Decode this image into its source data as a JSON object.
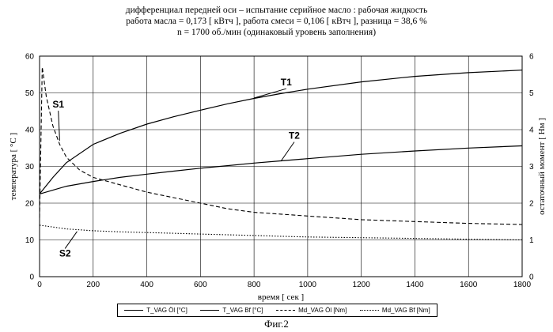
{
  "header": {
    "line1": "дифференциал передней оси – испытание серийное масло : рабочая жидкость",
    "line2": "работа масла = 0,173 [ кВтч ],  работа смеси = 0,106 [ кВтч ], разница = 38,6 %",
    "line3": "n = 1700 об./мин (одинаковый уровень заполнения)"
  },
  "figure_caption": "Фиг.2",
  "legend": [
    {
      "label": "T_VAG Öl [°C]",
      "style": "solid"
    },
    {
      "label": "T_VAG Bf [°C]",
      "style": "solid"
    },
    {
      "label": "Md_VAG Öl [Nm]",
      "style": "dashed"
    },
    {
      "label": "Md_VAG Bf [Nm]",
      "style": "dotted"
    }
  ],
  "chart_data": {
    "type": "line",
    "xlabel": "время [ сек ]",
    "ylabel_left": "температура [ °C ]",
    "ylabel_right": "остаточный момент [ Нм ]",
    "xlim": [
      0,
      1800
    ],
    "ylim_left": [
      0,
      60
    ],
    "ylim_right": [
      0,
      6
    ],
    "x_ticks": [
      0,
      200,
      400,
      600,
      800,
      1000,
      1200,
      1400,
      1600,
      1800
    ],
    "y_ticks_left": [
      0,
      10,
      20,
      30,
      40,
      50,
      60
    ],
    "y_ticks_right": [
      0,
      1,
      2,
      3,
      4,
      5,
      6
    ],
    "grid": true,
    "series": [
      {
        "name": "T_VAG Öl [°C]",
        "axis": "left",
        "style": "solid",
        "x": [
          0,
          50,
          100,
          200,
          300,
          400,
          500,
          600,
          700,
          800,
          900,
          1000,
          1200,
          1400,
          1600,
          1800
        ],
        "y": [
          22.5,
          27,
          31,
          36,
          39,
          41.5,
          43.5,
          45.3,
          47,
          48.5,
          49.8,
          51,
          53,
          54.5,
          55.5,
          56.2
        ]
      },
      {
        "name": "T_VAG Bf [°C]",
        "axis": "left",
        "style": "solid",
        "x": [
          0,
          100,
          200,
          300,
          400,
          500,
          600,
          700,
          800,
          900,
          1000,
          1200,
          1400,
          1600,
          1800
        ],
        "y": [
          22.5,
          24.6,
          25.9,
          27,
          27.9,
          28.7,
          29.5,
          30.2,
          30.9,
          31.5,
          32.1,
          33.3,
          34.2,
          35,
          35.6
        ]
      },
      {
        "name": "Md_VAG Öl [Nm]",
        "axis": "right",
        "style": "dashed",
        "x": [
          0,
          10,
          25,
          50,
          75,
          100,
          150,
          200,
          300,
          400,
          500,
          600,
          700,
          800,
          900,
          1000,
          1200,
          1400,
          1600,
          1800
        ],
        "y": [
          1.6,
          5.7,
          4.9,
          4.1,
          3.6,
          3.25,
          2.9,
          2.7,
          2.5,
          2.3,
          2.15,
          2.0,
          1.85,
          1.75,
          1.7,
          1.65,
          1.55,
          1.5,
          1.45,
          1.42
        ]
      },
      {
        "name": "Md_VAG Bf [Nm]",
        "axis": "right",
        "style": "dotted",
        "x": [
          0,
          50,
          100,
          200,
          300,
          400,
          500,
          600,
          700,
          800,
          900,
          1000,
          1200,
          1400,
          1600,
          1800
        ],
        "y": [
          1.4,
          1.35,
          1.3,
          1.25,
          1.22,
          1.2,
          1.18,
          1.16,
          1.14,
          1.12,
          1.1,
          1.08,
          1.06,
          1.04,
          1.02,
          1.0
        ]
      }
    ],
    "annotations": [
      {
        "text": "T1",
        "x": 920,
        "y": 52,
        "target_x": 800,
        "target_y": 48.6
      },
      {
        "text": "T2",
        "x": 950,
        "y": 37.5,
        "target_x": 900,
        "target_y": 31.4
      },
      {
        "text": "S1",
        "x": 70,
        "y": 46,
        "target_x": 75,
        "target_y": 37
      },
      {
        "text": "S2",
        "x": 95,
        "y": 5.5,
        "target_x": 140,
        "target_y": 12.3
      }
    ]
  }
}
